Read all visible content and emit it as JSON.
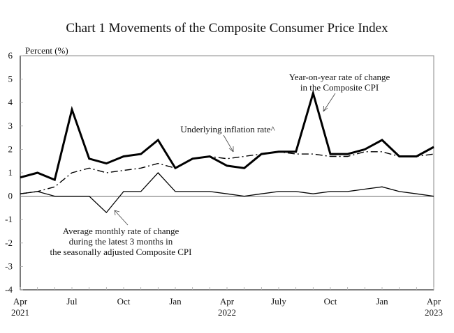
{
  "chart_data": {
    "type": "line",
    "title": "Chart 1    Movements of the Composite Consumer Price Index",
    "ylabel": "Percent (%)",
    "xlabel": "",
    "ylim": [
      -4,
      6
    ],
    "yticks": [
      6,
      5,
      4,
      3,
      2,
      1,
      0,
      -1,
      -2,
      -3,
      -4
    ],
    "x": [
      "2021-04",
      "2021-05",
      "2021-06",
      "2021-07",
      "2021-08",
      "2021-09",
      "2021-10",
      "2021-11",
      "2021-12",
      "2022-01",
      "2022-02",
      "2022-03",
      "2022-04",
      "2022-05",
      "2022-06",
      "2022-07",
      "2022-08",
      "2022-09",
      "2022-10",
      "2022-11",
      "2022-12",
      "2023-01",
      "2023-02",
      "2023-03",
      "2023-04"
    ],
    "xtick_labels": [
      {
        "index": 0,
        "line1": "Apr",
        "line2": "2021"
      },
      {
        "index": 3,
        "line1": "Jul",
        "line2": ""
      },
      {
        "index": 6,
        "line1": "Oct",
        "line2": ""
      },
      {
        "index": 9,
        "line1": "Jan",
        "line2": ""
      },
      {
        "index": 12,
        "line1": "Apr",
        "line2": "2022"
      },
      {
        "index": 15,
        "line1": "July",
        "line2": ""
      },
      {
        "index": 18,
        "line1": "Oct",
        "line2": ""
      },
      {
        "index": 21,
        "line1": "Jan",
        "line2": ""
      },
      {
        "index": 24,
        "line1": "Apr",
        "line2": "2023"
      }
    ],
    "grid": false,
    "series": [
      {
        "name": "Year-on-year rate of change in the Composite CPI",
        "style": "thick-solid",
        "values": [
          0.8,
          1.0,
          0.7,
          3.7,
          1.6,
          1.4,
          1.7,
          1.8,
          2.4,
          1.2,
          1.6,
          1.7,
          1.3,
          1.2,
          1.8,
          1.9,
          1.9,
          4.4,
          1.8,
          1.8,
          2.0,
          2.4,
          1.7,
          1.7,
          2.1
        ]
      },
      {
        "name": "Underlying inflation rate^",
        "style": "dash-dot",
        "values": [
          0.1,
          0.2,
          0.4,
          1.0,
          1.2,
          1.0,
          1.1,
          1.2,
          1.4,
          1.2,
          1.6,
          1.7,
          1.6,
          1.7,
          1.8,
          1.9,
          1.8,
          1.8,
          1.7,
          1.7,
          1.9,
          1.9,
          1.7,
          1.7,
          1.8
        ]
      },
      {
        "name": "Average monthly rate of change during the latest 3 months in the seasonally adjusted Composite CPI",
        "style": "thin-solid",
        "values": [
          0.1,
          0.2,
          0.0,
          0.0,
          0.0,
          -0.7,
          0.2,
          0.2,
          1.0,
          0.2,
          0.2,
          0.2,
          0.1,
          0.0,
          0.1,
          0.2,
          0.2,
          0.1,
          0.2,
          0.2,
          0.3,
          0.4,
          0.2,
          0.1,
          0.0
        ]
      }
    ],
    "annotations": [
      {
        "lines": [
          "Year-on-year rate of change",
          "in the Composite CPI"
        ],
        "series": 0
      },
      {
        "lines": [
          "Underlying inflation rate^"
        ],
        "series": 1
      },
      {
        "lines": [
          "Average monthly rate of change",
          "during the latest 3 months in",
          "the seasonally adjusted Composite CPI"
        ],
        "series": 2
      }
    ]
  }
}
